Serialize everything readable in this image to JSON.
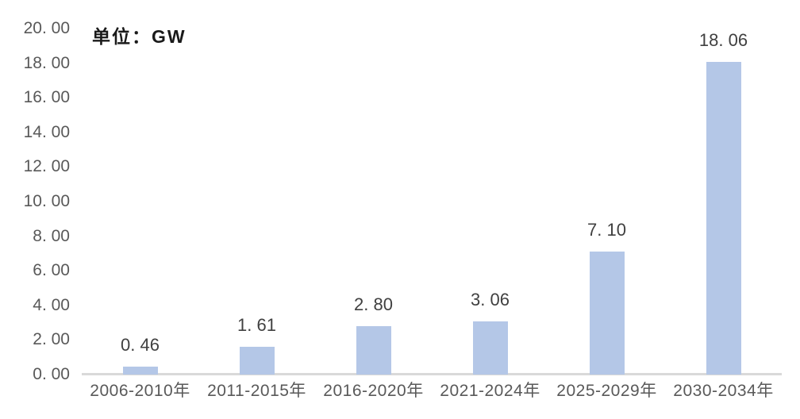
{
  "page": {
    "background": "#ffffff"
  },
  "chart_data": {
    "type": "bar",
    "title": "",
    "unit_label": "单位：GW",
    "categories": [
      "2006-2010年",
      "2011-2015年",
      "2016-2020年",
      "2021-2024年",
      "2025-2029年",
      "2030-2034年"
    ],
    "values": [
      0.46,
      1.61,
      2.8,
      3.06,
      7.1,
      18.06
    ],
    "data_labels": [
      "0. 46",
      "1. 61",
      "2. 80",
      "3. 06",
      "7. 10",
      "18. 06"
    ],
    "xlabel": "",
    "ylabel": "",
    "ylim": [
      0,
      20
    ],
    "ytick_step": 2,
    "ytick_labels": [
      "0. 00",
      "2. 00",
      "4. 00",
      "6. 00",
      "8. 00",
      "10. 00",
      "12. 00",
      "14. 00",
      "16. 00",
      "18. 00",
      "20. 00"
    ],
    "grid": false,
    "legend": false,
    "legend_position": "none",
    "bar_color": "#b4c7e7",
    "axis_line_color": "#d9d9d9",
    "tick_label_color": "#595959",
    "data_label_color": "#404040",
    "unit_label_color": "#1a1a1a"
  }
}
